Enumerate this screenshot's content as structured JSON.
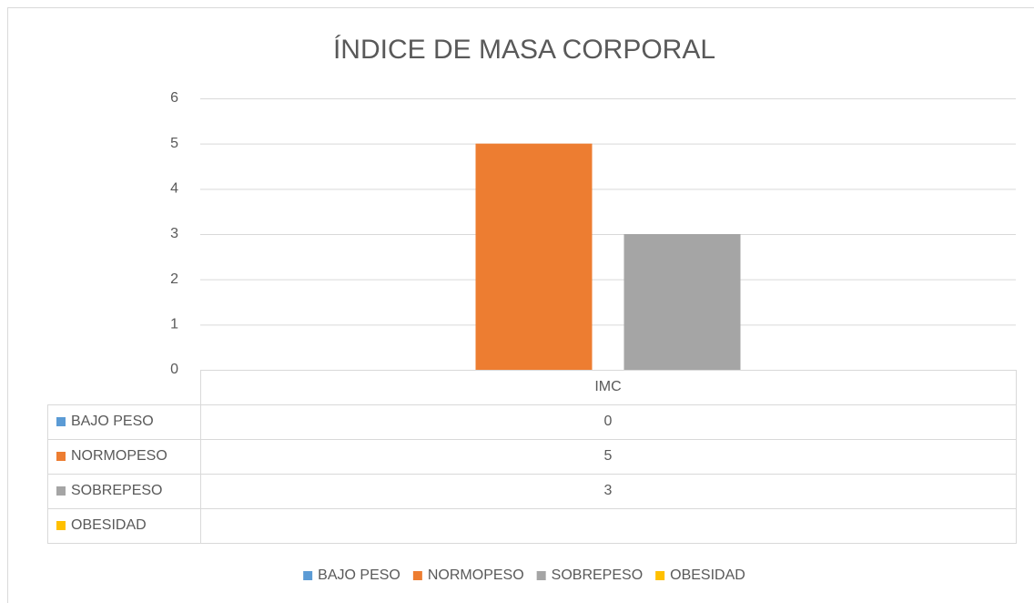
{
  "chart_data": {
    "type": "bar",
    "title": "ÍNDICE DE MASA CORPORAL",
    "categories": [
      "IMC"
    ],
    "series": [
      {
        "name": "BAJO PESO",
        "color": "#5b9bd5",
        "values": [
          0
        ]
      },
      {
        "name": "NORMOPESO",
        "color": "#ed7d31",
        "values": [
          5
        ]
      },
      {
        "name": "SOBREPESO",
        "color": "#a5a5a5",
        "values": [
          3
        ]
      },
      {
        "name": "OBESIDAD",
        "color": "#ffc000",
        "values": [
          null
        ]
      }
    ],
    "ylim": [
      0,
      6
    ],
    "yticks": [
      0,
      1,
      2,
      3,
      4,
      5,
      6
    ],
    "grid": true,
    "legend": "bottom",
    "data_table": true
  }
}
